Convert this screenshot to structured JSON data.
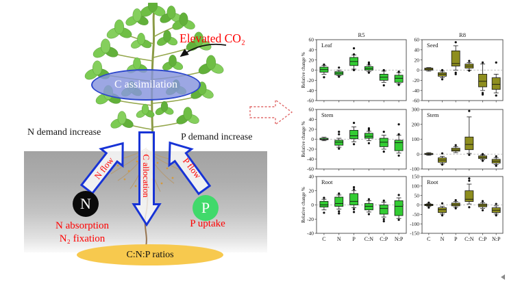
{
  "diagram": {
    "elevated_co2": "Elevated CO₂",
    "c_assimilation": "C assimilation",
    "n_demand": "N demand increase",
    "p_demand": "P demand increase",
    "n_flow": "N flow",
    "c_allocation": "C allocation",
    "p_flow": "P flow",
    "n_circle": "N",
    "p_circle": "P",
    "n_absorption": "N absorption",
    "n2_fixation": "N₂ fixation",
    "p_uptake": "P uptake",
    "cnp_ratios": "C:N:P ratios",
    "colors": {
      "red_text": "#FE0000",
      "arrow_blue": "#1733D6",
      "n_circle_fill": "#0A0A0A",
      "p_circle_fill": "#41D96B",
      "cnp_ellipse_fill": "#F7C94E",
      "assimilation_fill": "#8694DD",
      "soil_gray": "#A8A8A8"
    }
  },
  "chart_data": [
    {
      "type": "box",
      "panel": "R5",
      "tissue": "Leaf",
      "ylabel": "Relative change %",
      "ylim": [
        -60,
        60
      ],
      "yticks": [
        60,
        40,
        20,
        0,
        -20,
        -40,
        -60
      ],
      "categories": [
        "C",
        "N",
        "P",
        "C:N",
        "C:P",
        "N:P"
      ],
      "color": "#33CC33",
      "boxes": [
        {
          "lo": -8,
          "q1": -4,
          "median": 1,
          "q3": 6,
          "hi": 9,
          "outliers": [
            11,
            -14
          ]
        },
        {
          "lo": -11,
          "q1": -9,
          "median": -6,
          "q3": -3,
          "hi": 0,
          "outliers": [
            5,
            -13
          ]
        },
        {
          "lo": 2,
          "q1": 9,
          "median": 17,
          "q3": 25,
          "hi": 30,
          "outliers": [
            43,
            31,
            0
          ]
        },
        {
          "lo": -3,
          "q1": 0,
          "median": 3,
          "q3": 7,
          "hi": 10,
          "outliers": [
            15,
            12,
            -5
          ]
        },
        {
          "lo": -24,
          "q1": -20,
          "median": -14,
          "q3": -8,
          "hi": -2,
          "outliers": [
            0,
            -30
          ]
        },
        {
          "lo": -27,
          "q1": -24,
          "median": -16,
          "q3": -10,
          "hi": -5,
          "outliers": [
            -3,
            -29
          ]
        }
      ]
    },
    {
      "type": "box",
      "panel": "R8",
      "tissue": "Seed",
      "ylabel": "Relative change %",
      "ylim": [
        -60,
        60
      ],
      "yticks": [
        60,
        40,
        20,
        0,
        -20,
        -40,
        -60
      ],
      "categories": [
        "C",
        "N",
        "P",
        "C:N",
        "C:P",
        "N:P"
      ],
      "color": "#8E8E1F",
      "boxes": [
        {
          "lo": -2,
          "q1": 0,
          "median": 2,
          "q3": 4,
          "hi": 5,
          "outliers": []
        },
        {
          "lo": -15,
          "q1": -12,
          "median": -8,
          "q3": -5,
          "hi": -2,
          "outliers": [
            0,
            -18
          ]
        },
        {
          "lo": 0,
          "q1": 8,
          "median": 13,
          "q3": 38,
          "hi": 48,
          "outliers": [
            55,
            -5,
            -8
          ]
        },
        {
          "lo": 0,
          "q1": 4,
          "median": 8,
          "q3": 12,
          "hi": 15,
          "outliers": [
            18,
            -1
          ]
        },
        {
          "lo": -40,
          "q1": -33,
          "median": -22,
          "q3": -8,
          "hi": 12,
          "outliers": [
            15,
            -45,
            -48
          ]
        },
        {
          "lo": -45,
          "q1": -38,
          "median": -28,
          "q3": -15,
          "hi": -8,
          "outliers": [
            15,
            -50
          ]
        }
      ]
    },
    {
      "type": "box",
      "panel": "R5",
      "tissue": "Stem",
      "ylabel": "Relative change %",
      "ylim": [
        -60,
        60
      ],
      "yticks": [
        60,
        40,
        20,
        0,
        -20,
        -40,
        -60
      ],
      "categories": [
        "C",
        "N",
        "P",
        "C:N",
        "C:P",
        "N:P"
      ],
      "color": "#33CC33",
      "boxes": [
        {
          "lo": -3,
          "q1": -1,
          "median": 0,
          "q3": 2,
          "hi": 4,
          "outliers": []
        },
        {
          "lo": -16,
          "q1": -12,
          "median": -6,
          "q3": -2,
          "hi": 2,
          "outliers": [
            15,
            10,
            -19
          ]
        },
        {
          "lo": -5,
          "q1": 1,
          "median": 7,
          "q3": 18,
          "hi": 25,
          "outliers": [
            33,
            -10
          ]
        },
        {
          "lo": -3,
          "q1": 2,
          "median": 6,
          "q3": 12,
          "hi": 16,
          "outliers": [
            22,
            19,
            -8
          ]
        },
        {
          "lo": -20,
          "q1": -15,
          "median": -6,
          "q3": 2,
          "hi": 8,
          "outliers": [
            15,
            -25
          ]
        },
        {
          "lo": -28,
          "q1": -23,
          "median": -7,
          "q3": -2,
          "hi": 8,
          "outliers": [
            30,
            10,
            -33
          ]
        }
      ]
    },
    {
      "type": "box",
      "panel": "R8",
      "tissue": "Stem",
      "ylabel": "Relative change %",
      "ylim": [
        -100,
        300
      ],
      "yticks": [
        300,
        200,
        100,
        0,
        -100
      ],
      "categories": [
        "C",
        "N",
        "P",
        "C:N",
        "C:P",
        "N:P"
      ],
      "color": "#8E8E1F",
      "boxes": [
        {
          "lo": -8,
          "q1": -3,
          "median": 0,
          "q3": 5,
          "hi": 10,
          "outliers": []
        },
        {
          "lo": -65,
          "q1": -55,
          "median": -40,
          "q3": -25,
          "hi": -15,
          "outliers": [
            5,
            -70
          ]
        },
        {
          "lo": 10,
          "q1": 20,
          "median": 28,
          "q3": 40,
          "hi": 50,
          "outliers": [
            60
          ]
        },
        {
          "lo": 5,
          "q1": 30,
          "median": 65,
          "q3": 115,
          "hi": 250,
          "outliers": [
            290,
            -5
          ]
        },
        {
          "lo": -38,
          "q1": -30,
          "median": -22,
          "q3": -12,
          "hi": -5,
          "outliers": [
            0,
            -45
          ]
        },
        {
          "lo": -70,
          "q1": -60,
          "median": -48,
          "q3": -35,
          "hi": -25,
          "outliers": [
            -15,
            -78
          ]
        }
      ]
    },
    {
      "type": "box",
      "panel": "R5",
      "tissue": "Root",
      "ylabel": "Relative change %",
      "ylim": [
        -40,
        40
      ],
      "yticks": [
        40,
        20,
        0,
        -20,
        -40
      ],
      "categories": [
        "C",
        "N",
        "P",
        "C:N",
        "C:P",
        "N:P"
      ],
      "color": "#33CC33",
      "boxes": [
        {
          "lo": -7,
          "q1": -3,
          "median": 0,
          "q3": 5,
          "hi": 8,
          "outliers": [
            10,
            -11
          ]
        },
        {
          "lo": -6,
          "q1": -2,
          "median": 2,
          "q3": 11,
          "hi": 14,
          "outliers": [
            16,
            -9,
            -12
          ]
        },
        {
          "lo": -4,
          "q1": 0,
          "median": 5,
          "q3": 16,
          "hi": 20,
          "outliers": [
            25,
            22,
            -6,
            -10
          ]
        },
        {
          "lo": -10,
          "q1": -7,
          "median": -2,
          "q3": 2,
          "hi": 6,
          "outliers": [
            8,
            -13
          ]
        },
        {
          "lo": -17,
          "q1": -13,
          "median": -5,
          "q3": 0,
          "hi": 4,
          "outliers": [
            6,
            -20,
            -23
          ]
        },
        {
          "lo": -19,
          "q1": -15,
          "median": -2,
          "q3": 6,
          "hi": 10,
          "outliers": [
            14,
            -21
          ]
        }
      ]
    },
    {
      "type": "box",
      "panel": "R8",
      "tissue": "Root",
      "ylabel": "Relative change %",
      "ylim": [
        -150,
        150
      ],
      "yticks": [
        150,
        100,
        50,
        0,
        -50,
        -100,
        -150
      ],
      "categories": [
        "C",
        "N",
        "P",
        "C:N",
        "C:P",
        "N:P"
      ],
      "color": "#8E8E1F",
      "boxes": [
        {
          "lo": -8,
          "q1": -4,
          "median": 0,
          "q3": 4,
          "hi": 8,
          "outliers": [
            12,
            -14
          ]
        },
        {
          "lo": -48,
          "q1": -40,
          "median": -25,
          "q3": -15,
          "hi": -8,
          "outliers": [
            8,
            -55
          ]
        },
        {
          "lo": -12,
          "q1": -5,
          "median": 2,
          "q3": 10,
          "hi": 18,
          "outliers": [
            25,
            -18
          ]
        },
        {
          "lo": 5,
          "q1": 18,
          "median": 30,
          "q3": 75,
          "hi": 110,
          "outliers": [
            140,
            128,
            -12
          ]
        },
        {
          "lo": -18,
          "q1": -10,
          "median": -2,
          "q3": 5,
          "hi": 12,
          "outliers": [
            20,
            -28
          ]
        },
        {
          "lo": -48,
          "q1": -40,
          "median": -28,
          "q3": -15,
          "hi": -5,
          "outliers": [
            5,
            -55
          ]
        }
      ]
    }
  ]
}
